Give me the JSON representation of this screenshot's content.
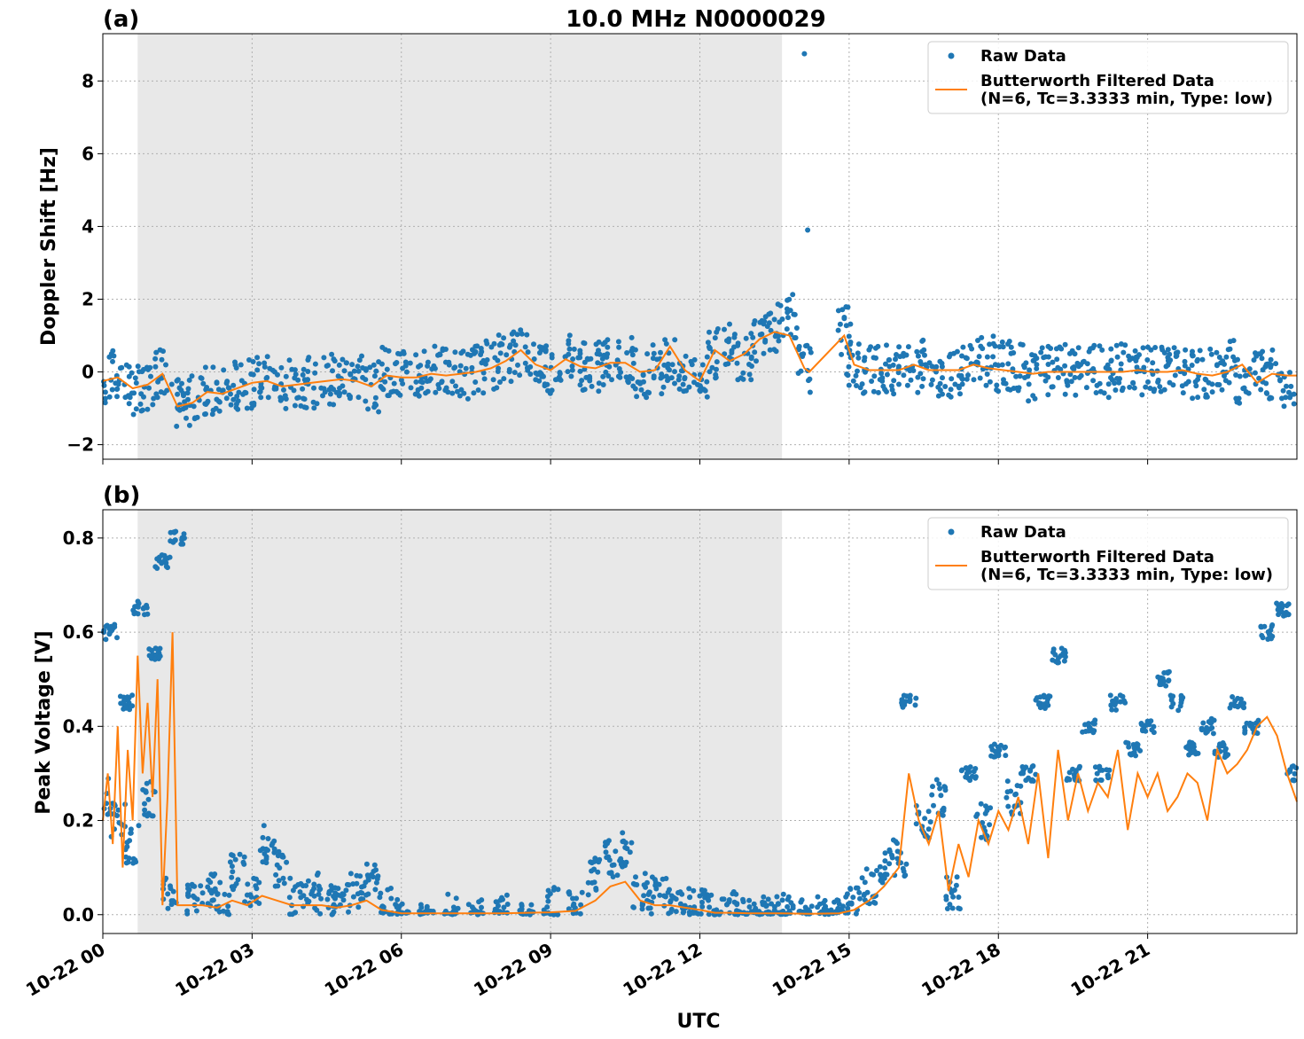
{
  "figure": {
    "title": "10.0 MHz N0000029",
    "xlabel": "UTC"
  },
  "chart_data": [
    {
      "type": "scatter",
      "panel": "(a)",
      "title": "10.0 MHz N0000029",
      "xlabel": "",
      "ylabel": "Doppler Shift [Hz]",
      "x_unit": "hours UTC since 10-22 00:00",
      "xlim": [
        0,
        24
      ],
      "ylim": [
        -2.4,
        9.3
      ],
      "yticks": [
        -2,
        0,
        2,
        4,
        6,
        8
      ],
      "ytick_labels": [
        "−2",
        "0",
        "2",
        "4",
        "6",
        "8"
      ],
      "grid": true,
      "shaded_region_x": [
        0.7,
        13.65
      ],
      "legend_position": "upper right",
      "series": [
        {
          "name": "Raw Data",
          "kind": "points",
          "color": "#1f77b4",
          "x": [
            0.0,
            0.3,
            0.6,
            0.9,
            1.2,
            1.5,
            1.8,
            2.1,
            2.4,
            2.7,
            3.0,
            3.3,
            3.6,
            3.9,
            4.2,
            4.5,
            4.8,
            5.1,
            5.4,
            5.7,
            6.0,
            6.3,
            6.6,
            6.9,
            7.2,
            7.5,
            7.8,
            8.1,
            8.4,
            8.7,
            9.0,
            9.3,
            9.6,
            9.9,
            10.2,
            10.5,
            10.8,
            11.1,
            11.4,
            11.7,
            12.0,
            12.3,
            12.6,
            12.9,
            13.2,
            13.5,
            13.8,
            14.1,
            14.2,
            14.25,
            14.9,
            15.1,
            15.4,
            15.7,
            16.0,
            16.3,
            16.6,
            16.9,
            17.2,
            17.5,
            17.8,
            18.1,
            18.4,
            18.7,
            19.0,
            19.3,
            19.6,
            19.9,
            20.2,
            20.5,
            20.8,
            21.1,
            21.4,
            21.7,
            22.0,
            22.3,
            22.6,
            22.9,
            23.2,
            23.5,
            23.8
          ],
          "y": [
            -0.25,
            -0.1,
            -0.5,
            -0.4,
            0.0,
            -0.9,
            -0.8,
            -0.5,
            -0.6,
            -0.4,
            -0.3,
            -0.2,
            -0.4,
            -0.35,
            -0.3,
            -0.2,
            -0.1,
            -0.2,
            -0.4,
            0.05,
            -0.1,
            -0.15,
            0.1,
            -0.05,
            -0.05,
            0.1,
            0.2,
            0.4,
            0.6,
            0.3,
            0.1,
            0.4,
            0.2,
            0.15,
            0.3,
            0.3,
            0.0,
            0.1,
            0.2,
            0.0,
            -0.2,
            0.5,
            0.9,
            0.4,
            1.0,
            1.2,
            1.6,
            0.1,
            8.75,
            3.9,
            1.1,
            0.2,
            0.1,
            0.05,
            0.05,
            0.1,
            0.3,
            0.0,
            0.1,
            0.2,
            0.3,
            0.15,
            0.1,
            -0.1,
            0.0,
            0.05,
            0.0,
            0.05,
            0.0,
            0.1,
            0.0,
            0.05,
            0.1,
            0.0,
            -0.1,
            0.0,
            0.2,
            -0.2,
            0.0,
            -0.1,
            -0.3
          ]
        },
        {
          "name": "Butterworth Filtered Data\n(N=6, Tc=3.3333 min, Type: low)",
          "kind": "line",
          "color": "#ff7f0e",
          "x": [
            0.0,
            0.3,
            0.6,
            0.9,
            1.2,
            1.5,
            1.8,
            2.1,
            2.4,
            2.7,
            3.0,
            3.3,
            3.6,
            3.9,
            4.2,
            4.5,
            4.8,
            5.1,
            5.4,
            5.7,
            6.0,
            6.3,
            6.6,
            6.9,
            7.2,
            7.5,
            7.8,
            8.1,
            8.4,
            8.7,
            9.0,
            9.3,
            9.6,
            9.9,
            10.2,
            10.5,
            10.8,
            11.1,
            11.4,
            11.7,
            12.0,
            12.3,
            12.6,
            12.9,
            13.2,
            13.5,
            13.8,
            14.1,
            14.2,
            14.9,
            15.1,
            15.4,
            15.7,
            16.0,
            16.3,
            16.6,
            16.9,
            17.2,
            17.5,
            17.8,
            18.1,
            18.4,
            18.7,
            19.0,
            19.3,
            19.6,
            19.9,
            20.2,
            20.5,
            20.8,
            21.1,
            21.4,
            21.7,
            22.0,
            22.3,
            22.6,
            22.9,
            23.2,
            23.5,
            23.8,
            24.0
          ],
          "y": [
            -0.25,
            -0.15,
            -0.45,
            -0.35,
            -0.05,
            -0.95,
            -0.85,
            -0.55,
            -0.6,
            -0.45,
            -0.3,
            -0.25,
            -0.4,
            -0.35,
            -0.3,
            -0.25,
            -0.2,
            -0.25,
            -0.4,
            -0.1,
            -0.15,
            -0.15,
            -0.05,
            -0.1,
            -0.05,
            0.0,
            0.1,
            0.3,
            0.6,
            0.2,
            0.05,
            0.35,
            0.15,
            0.1,
            0.25,
            0.25,
            0.0,
            0.05,
            0.7,
            0.05,
            -0.25,
            0.6,
            0.3,
            0.5,
            0.9,
            1.1,
            1.0,
            0.1,
            0.0,
            1.0,
            0.2,
            0.05,
            0.05,
            0.05,
            0.2,
            0.05,
            0.05,
            0.05,
            0.2,
            0.1,
            0.05,
            0.0,
            -0.05,
            0.0,
            0.0,
            0.0,
            0.0,
            0.0,
            0.0,
            0.05,
            0.0,
            0.0,
            0.05,
            -0.05,
            -0.1,
            0.0,
            0.2,
            -0.3,
            -0.05,
            -0.1,
            -0.1
          ]
        }
      ]
    },
    {
      "type": "scatter",
      "panel": "(b)",
      "title": "",
      "xlabel": "UTC",
      "ylabel": "Peak Voltage [V]",
      "x_unit": "hours UTC since 10-22 00:00",
      "xlim": [
        0,
        24
      ],
      "ylim": [
        -0.04,
        0.86
      ],
      "yticks": [
        0.0,
        0.2,
        0.4,
        0.6,
        0.8
      ],
      "ytick_labels": [
        "0.0",
        "0.2",
        "0.4",
        "0.6",
        "0.8"
      ],
      "xticks": [
        0,
        3,
        6,
        9,
        12,
        15,
        18,
        21
      ],
      "xtick_labels": [
        "10-22 00",
        "10-22 03",
        "10-22 06",
        "10-22 09",
        "10-22 12",
        "10-22 15",
        "10-22 18",
        "10-22 21"
      ],
      "grid": true,
      "shaded_region_x": [
        0.7,
        13.65
      ],
      "legend_position": "upper right",
      "series": [
        {
          "name": "Raw Data",
          "kind": "points",
          "color": "#1f77b4",
          "x": [
            0.0,
            0.15,
            0.3,
            0.45,
            0.6,
            0.75,
            0.9,
            1.05,
            1.2,
            1.35,
            1.5,
            1.8,
            2.1,
            2.4,
            2.7,
            3.0,
            3.3,
            3.6,
            3.9,
            4.2,
            4.5,
            4.8,
            5.1,
            5.4,
            5.7,
            6.0,
            6.5,
            7.0,
            7.5,
            8.0,
            8.5,
            9.0,
            9.5,
            9.9,
            10.2,
            10.5,
            10.8,
            11.1,
            11.4,
            11.7,
            12.0,
            12.3,
            12.6,
            12.9,
            13.2,
            13.5,
            13.8,
            14.1,
            14.5,
            14.8,
            15.1,
            15.4,
            15.7,
            16.0,
            16.2,
            16.5,
            16.8,
            17.1,
            17.4,
            17.7,
            18.0,
            18.3,
            18.6,
            18.9,
            19.2,
            19.5,
            19.8,
            20.1,
            20.4,
            20.7,
            21.0,
            21.3,
            21.6,
            21.9,
            22.2,
            22.5,
            22.8,
            23.1,
            23.4,
            23.7,
            23.95
          ],
          "y": [
            0.25,
            0.6,
            0.2,
            0.45,
            0.15,
            0.65,
            0.25,
            0.55,
            0.75,
            0.05,
            0.8,
            0.03,
            0.05,
            0.03,
            0.09,
            0.05,
            0.15,
            0.1,
            0.04,
            0.05,
            0.03,
            0.04,
            0.05,
            0.08,
            0.02,
            0.003,
            0.003,
            0.003,
            0.003,
            0.003,
            0.003,
            0.02,
            0.01,
            0.08,
            0.12,
            0.14,
            0.05,
            0.04,
            0.04,
            0.03,
            0.02,
            0.005,
            0.01,
            0.003,
            0.003,
            0.003,
            0.003,
            0.002,
            0.002,
            0.005,
            0.02,
            0.06,
            0.1,
            0.12,
            0.45,
            0.2,
            0.25,
            0.05,
            0.3,
            0.2,
            0.35,
            0.25,
            0.3,
            0.45,
            0.55,
            0.3,
            0.4,
            0.3,
            0.45,
            0.35,
            0.4,
            0.5,
            0.45,
            0.35,
            0.4,
            0.35,
            0.45,
            0.4,
            0.6,
            0.65,
            0.3
          ]
        },
        {
          "name": "Butterworth Filtered Data\n(N=6, Tc=3.3333 min, Type: low)",
          "kind": "line",
          "color": "#ff7f0e",
          "x": [
            0.0,
            0.1,
            0.2,
            0.3,
            0.4,
            0.5,
            0.6,
            0.7,
            0.8,
            0.9,
            1.0,
            1.1,
            1.2,
            1.3,
            1.4,
            1.5,
            1.7,
            2.0,
            2.3,
            2.6,
            2.9,
            3.2,
            3.5,
            3.8,
            4.1,
            4.4,
            4.7,
            5.0,
            5.3,
            5.6,
            6.0,
            7.0,
            8.0,
            9.0,
            9.5,
            9.9,
            10.2,
            10.5,
            10.8,
            11.1,
            11.4,
            11.7,
            12.0,
            12.3,
            12.6,
            13.0,
            13.6,
            14.2,
            14.8,
            15.1,
            15.4,
            15.7,
            16.0,
            16.2,
            16.4,
            16.6,
            16.8,
            17.0,
            17.2,
            17.4,
            17.6,
            17.8,
            18.0,
            18.2,
            18.4,
            18.6,
            18.8,
            19.0,
            19.2,
            19.4,
            19.6,
            19.8,
            20.0,
            20.2,
            20.4,
            20.6,
            20.8,
            21.0,
            21.2,
            21.4,
            21.6,
            21.8,
            22.0,
            22.2,
            22.4,
            22.6,
            22.8,
            23.0,
            23.2,
            23.4,
            23.6,
            23.8,
            24.0
          ],
          "y": [
            0.2,
            0.3,
            0.15,
            0.4,
            0.1,
            0.35,
            0.2,
            0.55,
            0.3,
            0.45,
            0.25,
            0.5,
            0.02,
            0.25,
            0.6,
            0.02,
            0.02,
            0.02,
            0.015,
            0.03,
            0.02,
            0.04,
            0.03,
            0.02,
            0.02,
            0.02,
            0.015,
            0.02,
            0.03,
            0.01,
            0.003,
            0.003,
            0.003,
            0.005,
            0.008,
            0.03,
            0.06,
            0.07,
            0.03,
            0.02,
            0.02,
            0.015,
            0.01,
            0.004,
            0.004,
            0.003,
            0.003,
            0.002,
            0.003,
            0.01,
            0.03,
            0.06,
            0.1,
            0.3,
            0.2,
            0.15,
            0.22,
            0.05,
            0.15,
            0.08,
            0.2,
            0.15,
            0.22,
            0.18,
            0.25,
            0.15,
            0.3,
            0.12,
            0.35,
            0.2,
            0.3,
            0.22,
            0.28,
            0.25,
            0.35,
            0.18,
            0.3,
            0.25,
            0.3,
            0.22,
            0.25,
            0.3,
            0.28,
            0.2,
            0.35,
            0.3,
            0.32,
            0.35,
            0.4,
            0.42,
            0.38,
            0.3,
            0.24
          ]
        }
      ]
    }
  ]
}
